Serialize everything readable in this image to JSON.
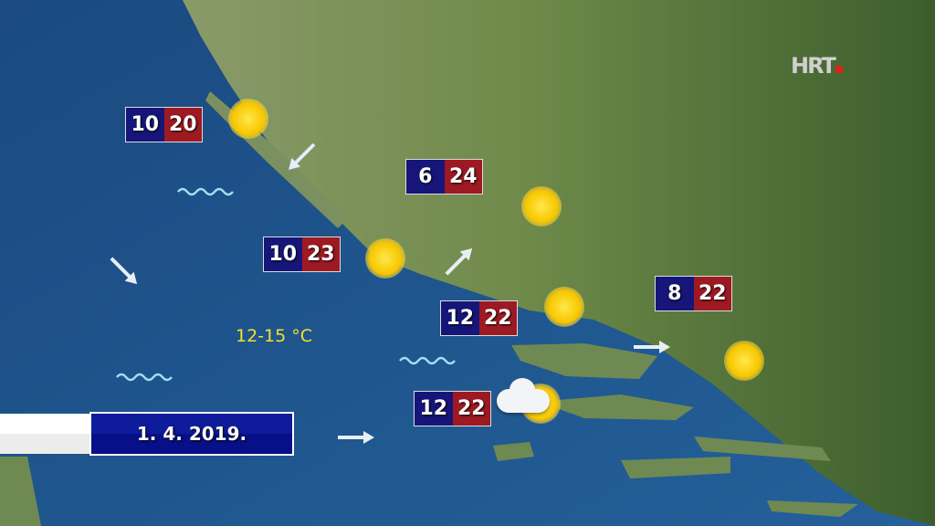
{
  "logo": {
    "text": "HRT",
    "accent": "#e0201a"
  },
  "date": "1. 4. 2019.",
  "sea_temperature": "12-15 °C",
  "colors": {
    "min_temp": "#16167a",
    "max_temp": "#9e1a22",
    "sea": "#1d4f86",
    "land": "#5a7a3c",
    "sea_temp_text": "#f5e02c"
  },
  "forecasts": [
    {
      "min": "10",
      "max": "20",
      "icon": "sun-icon"
    },
    {
      "min": "6",
      "max": "24",
      "icon": "sun-icon"
    },
    {
      "min": "10",
      "max": "23",
      "icon": "sun-icon"
    },
    {
      "min": "12",
      "max": "22",
      "icon": "sun-icon"
    },
    {
      "min": "8",
      "max": "22",
      "icon": "sun-icon"
    },
    {
      "min": "12",
      "max": "22",
      "icon": "partly-cloudy-icon"
    }
  ],
  "wind_arrows": [
    "southwest",
    "southeast",
    "northeast",
    "east",
    "east"
  ],
  "waves": [
    "wave-icon",
    "wave-icon",
    "wave-icon"
  ]
}
